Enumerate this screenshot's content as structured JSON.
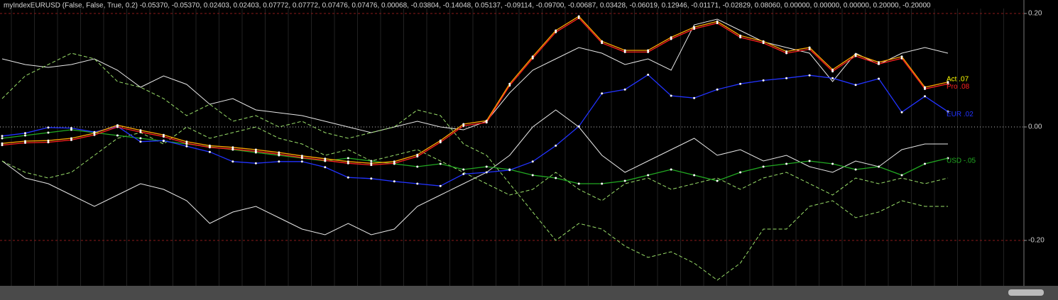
{
  "chart_data": {
    "type": "line",
    "title": "myIndexEURUSD (False, False, True, 0.2) -0.05370, -0.05370, 0.02403, 0.02403, 0.07772, 0.07772, 0.07476, 0.07476, 0.00068, -0.03804, -0.14048, 0.05137, -0.09114, -0.09700, -0.00687, 0.03428, -0.06019, 0.12946, -0.01171, -0.02829, 0.08060, 0.00000, 0.00000, 0.00000, 0.20000, -0.20000",
    "ylim": [
      -0.28,
      0.22375
    ],
    "yticks": [
      {
        "value": 0.2,
        "label": "0.20"
      },
      {
        "value": 0,
        "label": "0.00"
      },
      {
        "value": -0.2,
        "label": "-0.20"
      }
    ],
    "series": [
      {
        "color": "#e8e8e8",
        "values": [
          0.12,
          0.11,
          0.105,
          0.11,
          0.12,
          0.1,
          0.07,
          0.09,
          0.075,
          0.04,
          0.05,
          0.03,
          0.025,
          0.02,
          0.01,
          0.0,
          -0.01,
          0.0,
          0.01,
          0.0,
          -0.005,
          0.01,
          0.06,
          0.1,
          0.12,
          0.14,
          0.13,
          0.11,
          0.12,
          0.1,
          0.18,
          0.19,
          0.17,
          0.15,
          0.14,
          0.13,
          0.08,
          0.13,
          0.11,
          0.13,
          0.14,
          0.13
        ]
      },
      {
        "color": "#e8e8e8",
        "values": [
          -0.06,
          -0.09,
          -0.1,
          -0.12,
          -0.14,
          -0.12,
          -0.1,
          -0.11,
          -0.13,
          -0.17,
          -0.15,
          -0.14,
          -0.16,
          -0.18,
          -0.19,
          -0.17,
          -0.19,
          -0.18,
          -0.14,
          -0.12,
          -0.1,
          -0.08,
          -0.05,
          0.0,
          0.03,
          0.0,
          -0.05,
          -0.08,
          -0.06,
          -0.04,
          -0.02,
          -0.05,
          -0.04,
          -0.06,
          -0.05,
          -0.07,
          -0.08,
          -0.06,
          -0.07,
          -0.04,
          -0.03,
          -0.03
        ]
      },
      {
        "color": "#9adf6a",
        "dashed": true,
        "values": [
          0.05,
          0.09,
          0.11,
          0.13,
          0.12,
          0.08,
          0.07,
          0.05,
          0.02,
          0.04,
          0.01,
          0.02,
          0.0,
          0.01,
          -0.01,
          -0.02,
          -0.01,
          0.0,
          0.03,
          0.02,
          -0.03,
          -0.05,
          -0.1,
          -0.15,
          -0.2,
          -0.17,
          -0.18,
          -0.21,
          -0.23,
          -0.22,
          -0.24,
          -0.27,
          -0.24,
          -0.18,
          -0.18,
          -0.14,
          -0.13,
          -0.16,
          -0.15,
          -0.13,
          -0.14,
          -0.14
        ]
      },
      {
        "color": "#9adf6a",
        "dashed": true,
        "values": [
          -0.06,
          -0.08,
          -0.09,
          -0.08,
          -0.05,
          -0.02,
          -0.01,
          -0.03,
          0.0,
          -0.02,
          -0.01,
          0.0,
          -0.02,
          -0.03,
          -0.05,
          -0.04,
          -0.06,
          -0.05,
          -0.04,
          -0.06,
          -0.08,
          -0.1,
          -0.12,
          -0.11,
          -0.08,
          -0.11,
          -0.13,
          -0.1,
          -0.09,
          -0.11,
          -0.1,
          -0.09,
          -0.11,
          -0.09,
          -0.08,
          -0.1,
          -0.12,
          -0.09,
          -0.1,
          -0.09,
          -0.1,
          -0.09
        ]
      },
      {
        "name": "USD -.05",
        "color": "#22aa22",
        "values": [
          -0.02,
          -0.015,
          -0.01,
          -0.005,
          -0.01,
          -0.015,
          -0.02,
          -0.025,
          -0.03,
          -0.035,
          -0.04,
          -0.045,
          -0.05,
          -0.055,
          -0.06,
          -0.055,
          -0.06,
          -0.065,
          -0.07,
          -0.065,
          -0.075,
          -0.07,
          -0.075,
          -0.085,
          -0.09,
          -0.1,
          -0.1,
          -0.095,
          -0.085,
          -0.075,
          -0.085,
          -0.095,
          -0.08,
          -0.07,
          -0.065,
          -0.06,
          -0.065,
          -0.075,
          -0.07,
          -0.085,
          -0.065,
          -0.055
        ]
      },
      {
        "name": "EUR .02",
        "color": "#2233ff",
        "values": [
          -0.016,
          -0.011,
          -0.001,
          -0.002,
          -0.009,
          0.001,
          -0.026,
          -0.024,
          -0.034,
          -0.044,
          -0.061,
          -0.064,
          -0.061,
          -0.061,
          -0.071,
          -0.089,
          -0.091,
          -0.096,
          -0.1,
          -0.104,
          -0.083,
          -0.08,
          -0.076,
          -0.061,
          -0.033,
          0.001,
          0.059,
          0.066,
          0.092,
          0.055,
          0.051,
          0.066,
          0.076,
          0.082,
          0.086,
          0.091,
          0.086,
          0.074,
          0.085,
          0.026,
          0.054,
          0.027
        ]
      },
      {
        "name": "Pro .08",
        "color": "#ff2020",
        "values": [
          -0.032,
          -0.028,
          -0.027,
          -0.023,
          -0.014,
          0.0,
          -0.009,
          -0.017,
          -0.029,
          -0.036,
          -0.039,
          -0.043,
          -0.048,
          -0.054,
          -0.059,
          -0.064,
          -0.067,
          -0.064,
          -0.052,
          -0.027,
          0.002,
          0.008,
          0.073,
          0.121,
          0.167,
          0.192,
          0.148,
          0.132,
          0.132,
          0.155,
          0.173,
          0.183,
          0.158,
          0.148,
          0.13,
          0.137,
          0.098,
          0.125,
          0.111,
          0.121,
          0.067,
          0.076
        ]
      },
      {
        "name": "Act .07",
        "color": "#ffa500",
        "label_color": "#ffff00",
        "values": [
          -0.029,
          -0.025,
          -0.024,
          -0.02,
          -0.011,
          0.003,
          -0.006,
          -0.014,
          -0.026,
          -0.033,
          -0.036,
          -0.04,
          -0.045,
          -0.051,
          -0.056,
          -0.061,
          -0.064,
          -0.061,
          -0.049,
          -0.024,
          0.005,
          0.011,
          0.076,
          0.124,
          0.17,
          0.195,
          0.151,
          0.135,
          0.135,
          0.158,
          0.176,
          0.186,
          0.161,
          0.151,
          0.133,
          0.14,
          0.101,
          0.128,
          0.114,
          0.124,
          0.07,
          0.079
        ]
      }
    ]
  }
}
